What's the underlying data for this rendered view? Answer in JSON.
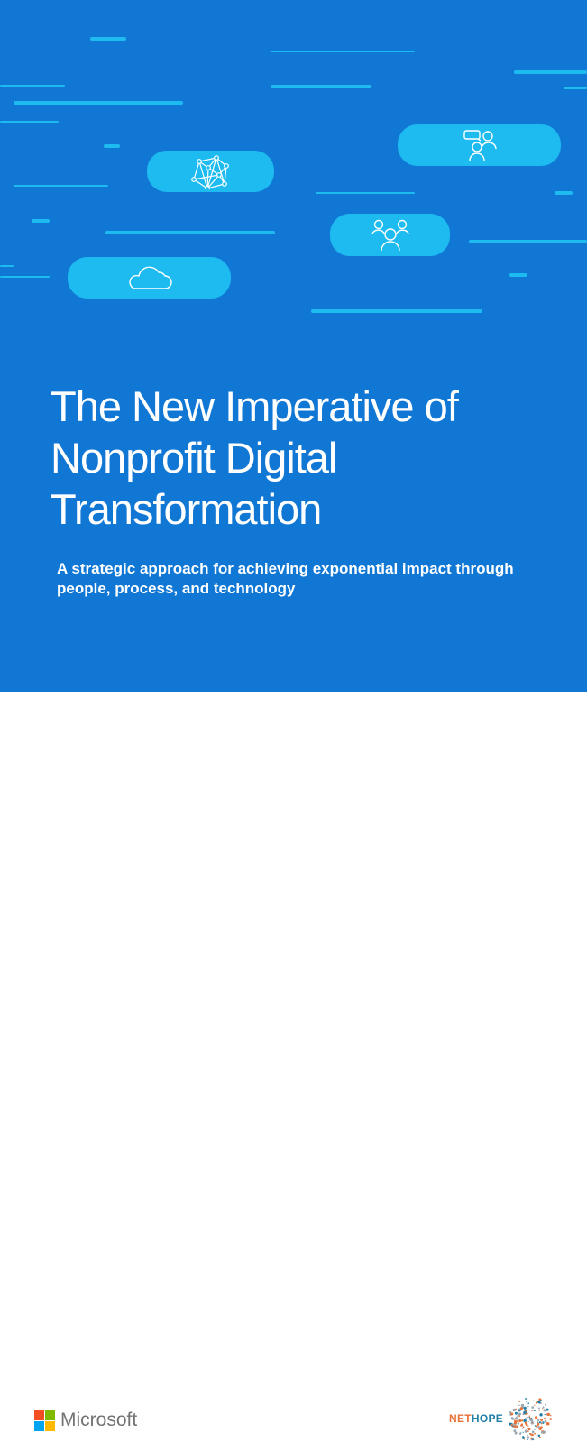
{
  "cover": {
    "title": "The New Imperative of Nonprofit Digital Transformation",
    "subtitle": "A strategic approach for achieving exponential impact through people, process, and technology",
    "colors": {
      "background": "#1077d5",
      "accent": "#1ebbf0"
    },
    "icons": [
      "network-icon",
      "chat-people-icon",
      "group-icon",
      "cloud-icon"
    ]
  },
  "footer": {
    "microsoft": {
      "name": "Microsoft",
      "logo_colors": [
        "#f25022",
        "#7fba00",
        "#00a4ef",
        "#ffb900"
      ]
    },
    "nethope": {
      "name_part1": "NET",
      "name_part2": "HOPE",
      "colors": [
        "#e8733a",
        "#1f7fa6"
      ]
    }
  }
}
